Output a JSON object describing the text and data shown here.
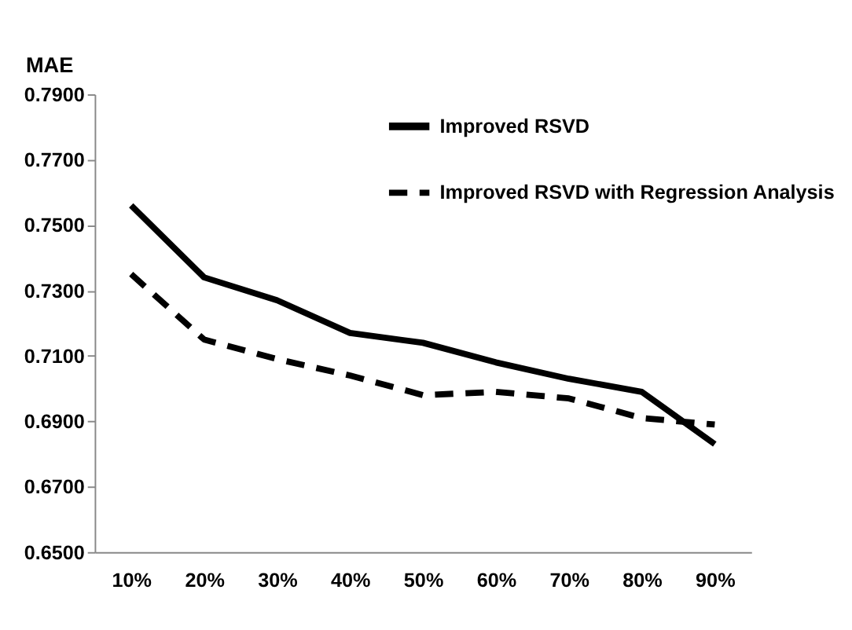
{
  "chart_data": {
    "type": "line",
    "ylabel": "MAE",
    "categories": [
      "10%",
      "20%",
      "30%",
      "40%",
      "50%",
      "60%",
      "70%",
      "80%",
      "90%"
    ],
    "series": [
      {
        "name": "Improved RSVD",
        "color": "#000000",
        "line_style": "solid",
        "values": [
          0.756,
          0.734,
          0.727,
          0.717,
          0.714,
          0.708,
          0.703,
          0.699,
          0.683
        ]
      },
      {
        "name": "Improved RSVD with Regression Analysis",
        "color": "#000000",
        "line_style": "dashed",
        "values": [
          0.735,
          0.715,
          0.709,
          0.704,
          0.698,
          0.699,
          0.697,
          0.691,
          0.689
        ]
      }
    ],
    "ylim": [
      0.65,
      0.79
    ],
    "yticks": [
      {
        "value": 0.65,
        "label": "0.6500"
      },
      {
        "value": 0.67,
        "label": "0.6700"
      },
      {
        "value": 0.69,
        "label": "0.6900"
      },
      {
        "value": 0.71,
        "label": "0.7100"
      },
      {
        "value": 0.73,
        "label": "0.7300"
      },
      {
        "value": 0.75,
        "label": "0.7500"
      },
      {
        "value": 0.77,
        "label": "0.7700"
      },
      {
        "value": 0.79,
        "label": "0.7900"
      }
    ],
    "grid": false,
    "legend": "top right",
    "marker": "none"
  }
}
